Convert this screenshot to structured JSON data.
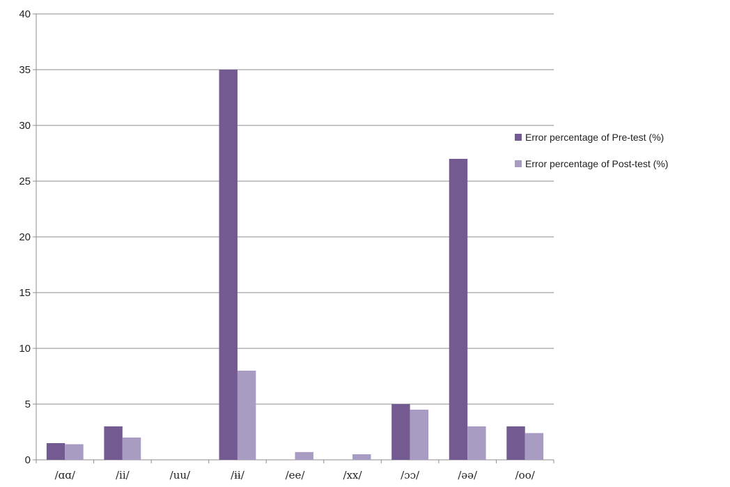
{
  "chart_data": {
    "type": "bar",
    "categories": [
      "/ɑɑ/",
      "/ii/",
      "/uu/",
      "/ɨɨ/",
      "/ee/",
      "/xx/",
      "/ɔɔ/",
      "/əə/",
      "/oo/"
    ],
    "series": [
      {
        "name": "Error percentage of Pre-test (%)",
        "values": [
          1.5,
          3,
          0,
          35,
          0,
          0,
          5,
          27,
          3
        ],
        "color": "#735a91"
      },
      {
        "name": "Error percentage of Post-test (%)",
        "values": [
          1.4,
          2,
          0,
          8,
          0.7,
          0.5,
          4.5,
          3,
          2.4
        ],
        "color": "#a99cc2"
      }
    ],
    "title": "",
    "xlabel": "",
    "ylabel": "",
    "ylim": [
      0,
      40
    ],
    "yticks": [
      0,
      5,
      10,
      15,
      20,
      25,
      30,
      35,
      40
    ],
    "grid": true,
    "legend_position": "right"
  }
}
